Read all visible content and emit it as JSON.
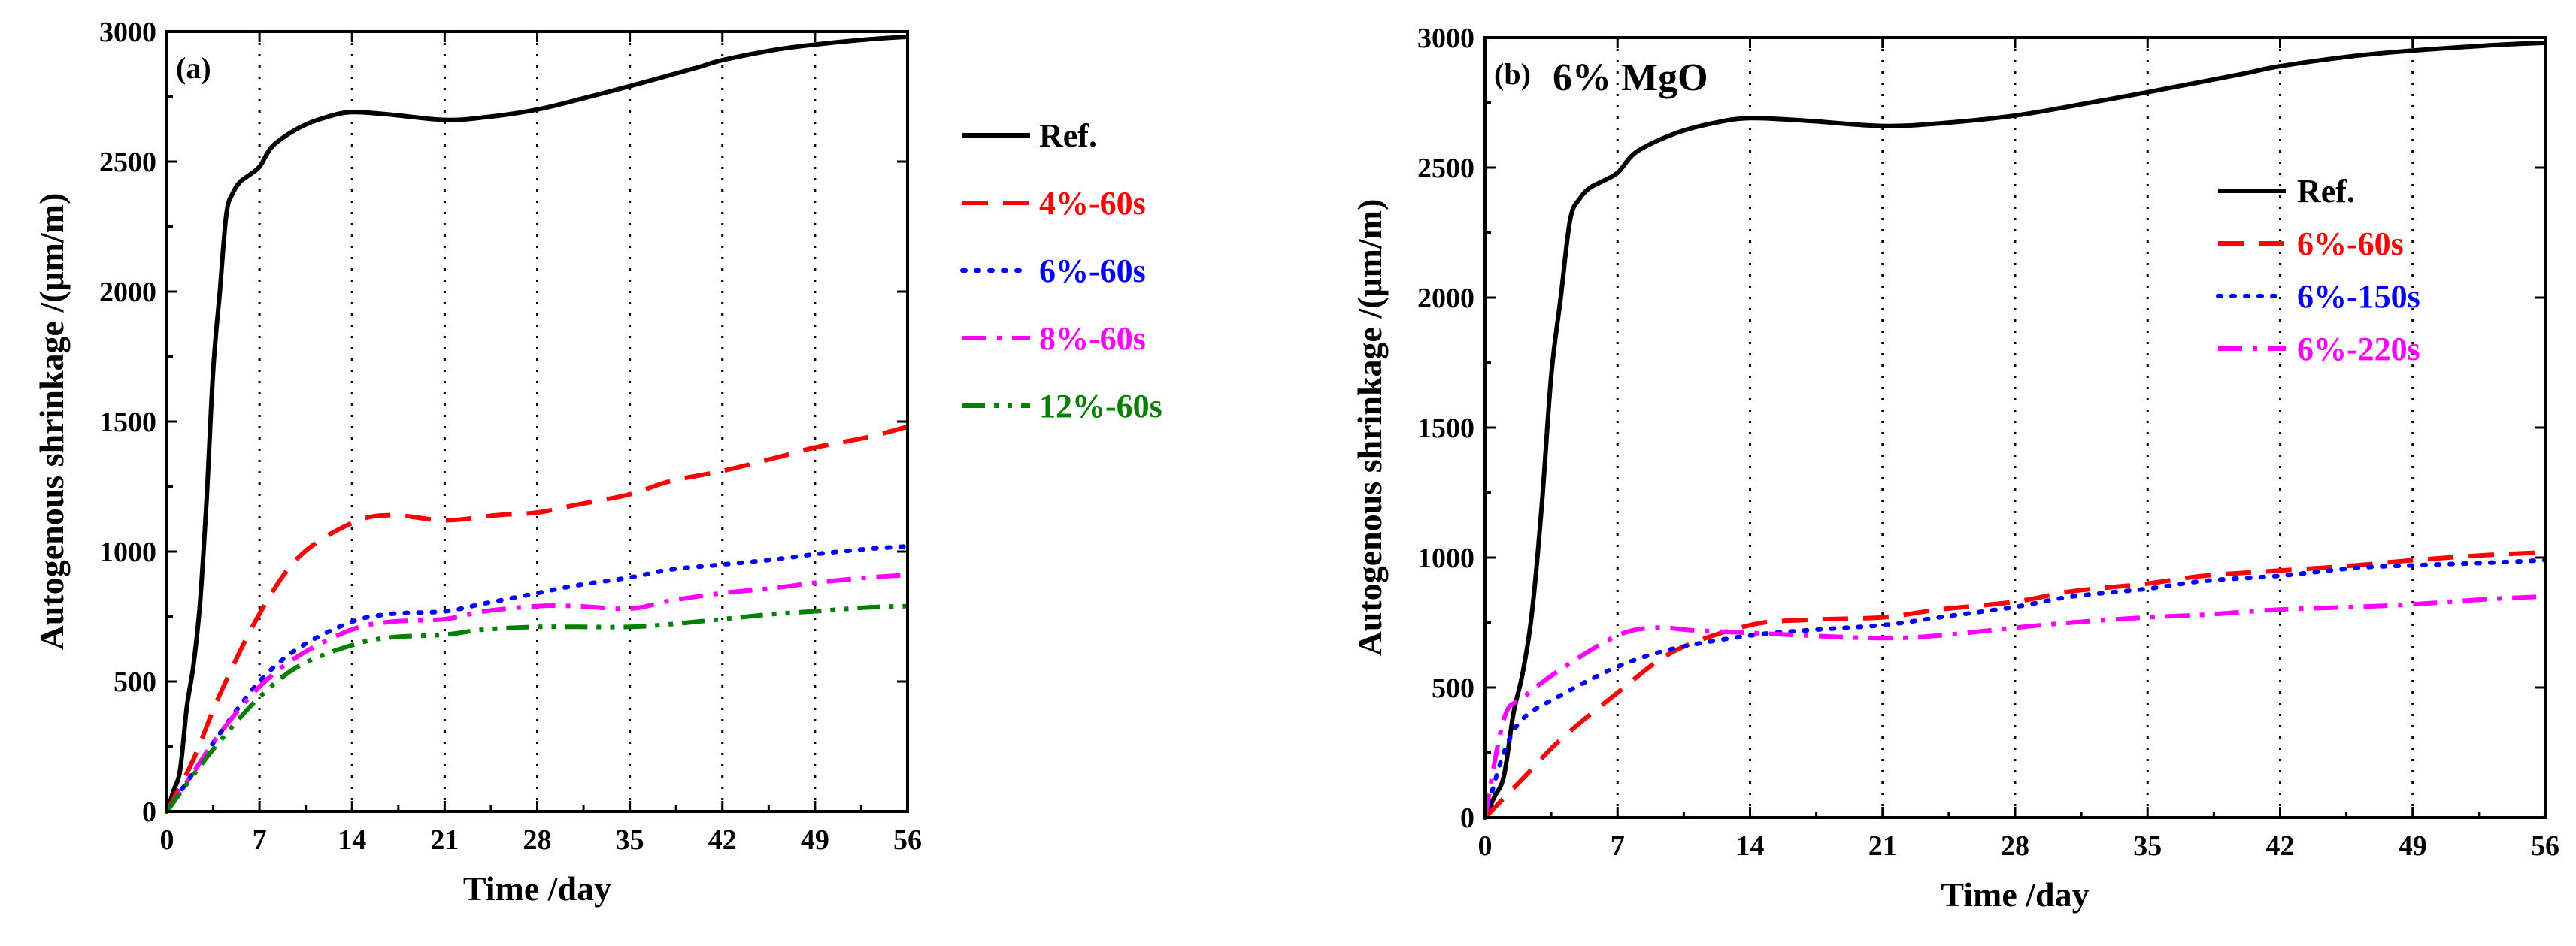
{
  "figure": {
    "description_hidden": false
  },
  "chart_data": [
    {
      "type": "line",
      "panel_label": "(a)",
      "annotation": "",
      "xlabel": "Time /day",
      "ylabel": "Autogenous shrinkage /(μm/m)",
      "xlim": [
        0,
        56
      ],
      "ylim": [
        0,
        3000
      ],
      "xticks": [
        0,
        7,
        14,
        21,
        28,
        35,
        42,
        49,
        56
      ],
      "yticks": [
        0,
        500,
        1000,
        1500,
        2000,
        2500,
        3000
      ],
      "vgrid": [
        7,
        14,
        21,
        28,
        35,
        42,
        49
      ],
      "legend_position": "top-right",
      "series": [
        {
          "name": "Ref.",
          "color": "#000000",
          "style": "solid",
          "x": [
            0,
            0.5,
            1,
            1.5,
            2,
            2.5,
            3,
            3.5,
            4,
            4.5,
            5,
            5.5,
            6,
            7,
            8,
            10,
            12,
            14,
            17,
            21,
            24,
            28,
            32,
            35,
            40,
            42,
            46,
            49,
            53,
            56
          ],
          "y": [
            0,
            80,
            160,
            400,
            560,
            800,
            1200,
            1700,
            2000,
            2300,
            2380,
            2420,
            2440,
            2480,
            2560,
            2630,
            2670,
            2690,
            2680,
            2660,
            2670,
            2700,
            2750,
            2790,
            2860,
            2890,
            2930,
            2950,
            2970,
            2980
          ]
        },
        {
          "name": "4%-60s",
          "color": "#ff0000",
          "style": "dash",
          "x": [
            0,
            2,
            4,
            7,
            10,
            14,
            17,
            21,
            25,
            28,
            31,
            35,
            38,
            42,
            46,
            49,
            53,
            56
          ],
          "y": [
            0,
            200,
            450,
            760,
            980,
            1110,
            1140,
            1120,
            1140,
            1150,
            1180,
            1220,
            1270,
            1310,
            1360,
            1400,
            1440,
            1480
          ]
        },
        {
          "name": "6%-60s",
          "color": "#0000ff",
          "style": "dot",
          "x": [
            0,
            2,
            4,
            7,
            10,
            14,
            17,
            21,
            24,
            28,
            31,
            35,
            38,
            42,
            46,
            49,
            53,
            56
          ],
          "y": [
            0,
            150,
            300,
            500,
            630,
            730,
            760,
            770,
            800,
            840,
            870,
            900,
            930,
            950,
            970,
            990,
            1010,
            1020
          ]
        },
        {
          "name": "8%-60s",
          "color": "#ff00ff",
          "style": "dashdot",
          "x": [
            0,
            2,
            4,
            7,
            10,
            14,
            17,
            21,
            24,
            28,
            31,
            35,
            38,
            42,
            46,
            49,
            53,
            56
          ],
          "y": [
            0,
            150,
            300,
            480,
            600,
            700,
            730,
            740,
            770,
            790,
            790,
            780,
            810,
            840,
            860,
            880,
            900,
            910
          ]
        },
        {
          "name": "12%-60s",
          "color": "#008000",
          "style": "dashdotdot",
          "x": [
            0,
            2,
            4,
            7,
            10,
            14,
            17,
            21,
            24,
            28,
            31,
            35,
            38,
            42,
            46,
            49,
            53,
            56
          ],
          "y": [
            0,
            140,
            270,
            440,
            560,
            640,
            670,
            680,
            700,
            710,
            710,
            710,
            720,
            740,
            760,
            770,
            785,
            790
          ]
        }
      ]
    },
    {
      "type": "line",
      "panel_label": "(b)",
      "annotation": "6% MgO",
      "xlabel": "Time /day",
      "ylabel": "Autogenous shrinkage /(μm/m)",
      "xlim": [
        0,
        56
      ],
      "ylim": [
        0,
        3000
      ],
      "xticks": [
        0,
        7,
        14,
        21,
        28,
        35,
        42,
        49,
        56
      ],
      "yticks": [
        0,
        500,
        1000,
        1500,
        2000,
        2500,
        3000
      ],
      "vgrid": [
        7,
        14,
        21,
        28,
        35,
        42,
        49
      ],
      "legend_position": "top-right",
      "series": [
        {
          "name": "Ref.",
          "color": "#000000",
          "style": "solid",
          "x": [
            0,
            0.5,
            1,
            1.5,
            2,
            2.5,
            3,
            3.5,
            4,
            4.5,
            5,
            5.5,
            6,
            7,
            8,
            10,
            12,
            14,
            17,
            21,
            24,
            28,
            32,
            35,
            40,
            42,
            46,
            49,
            53,
            56
          ],
          "y": [
            0,
            80,
            160,
            400,
            560,
            800,
            1200,
            1700,
            2000,
            2300,
            2380,
            2420,
            2440,
            2480,
            2560,
            2630,
            2670,
            2690,
            2680,
            2660,
            2670,
            2700,
            2750,
            2790,
            2860,
            2890,
            2930,
            2950,
            2970,
            2980
          ]
        },
        {
          "name": "6%-60s",
          "color": "#ff0000",
          "style": "dash",
          "x": [
            0,
            2,
            4,
            7,
            10,
            14,
            17,
            21,
            24,
            28,
            31,
            35,
            38,
            42,
            46,
            49,
            53,
            56
          ],
          "y": [
            0,
            150,
            300,
            480,
            640,
            740,
            760,
            770,
            800,
            830,
            870,
            900,
            930,
            950,
            970,
            990,
            1010,
            1020
          ]
        },
        {
          "name": "6%-150s",
          "color": "#0000ff",
          "style": "dot",
          "x": [
            0,
            1,
            2,
            4,
            7,
            10,
            14,
            17,
            21,
            24,
            28,
            31,
            35,
            38,
            42,
            46,
            49,
            53,
            56
          ],
          "y": [
            0,
            250,
            380,
            470,
            580,
            650,
            700,
            720,
            740,
            770,
            810,
            850,
            880,
            910,
            930,
            960,
            970,
            980,
            990
          ]
        },
        {
          "name": "6%-220s",
          "color": "#ff00ff",
          "style": "dashdot",
          "x": [
            0,
            1,
            2,
            4,
            7,
            9,
            11,
            14,
            17,
            21,
            24,
            28,
            31,
            35,
            38,
            42,
            46,
            49,
            53,
            56
          ],
          "y": [
            0,
            380,
            460,
            570,
            700,
            730,
            720,
            710,
            700,
            690,
            700,
            730,
            750,
            770,
            780,
            800,
            810,
            820,
            840,
            850
          ]
        }
      ]
    }
  ]
}
